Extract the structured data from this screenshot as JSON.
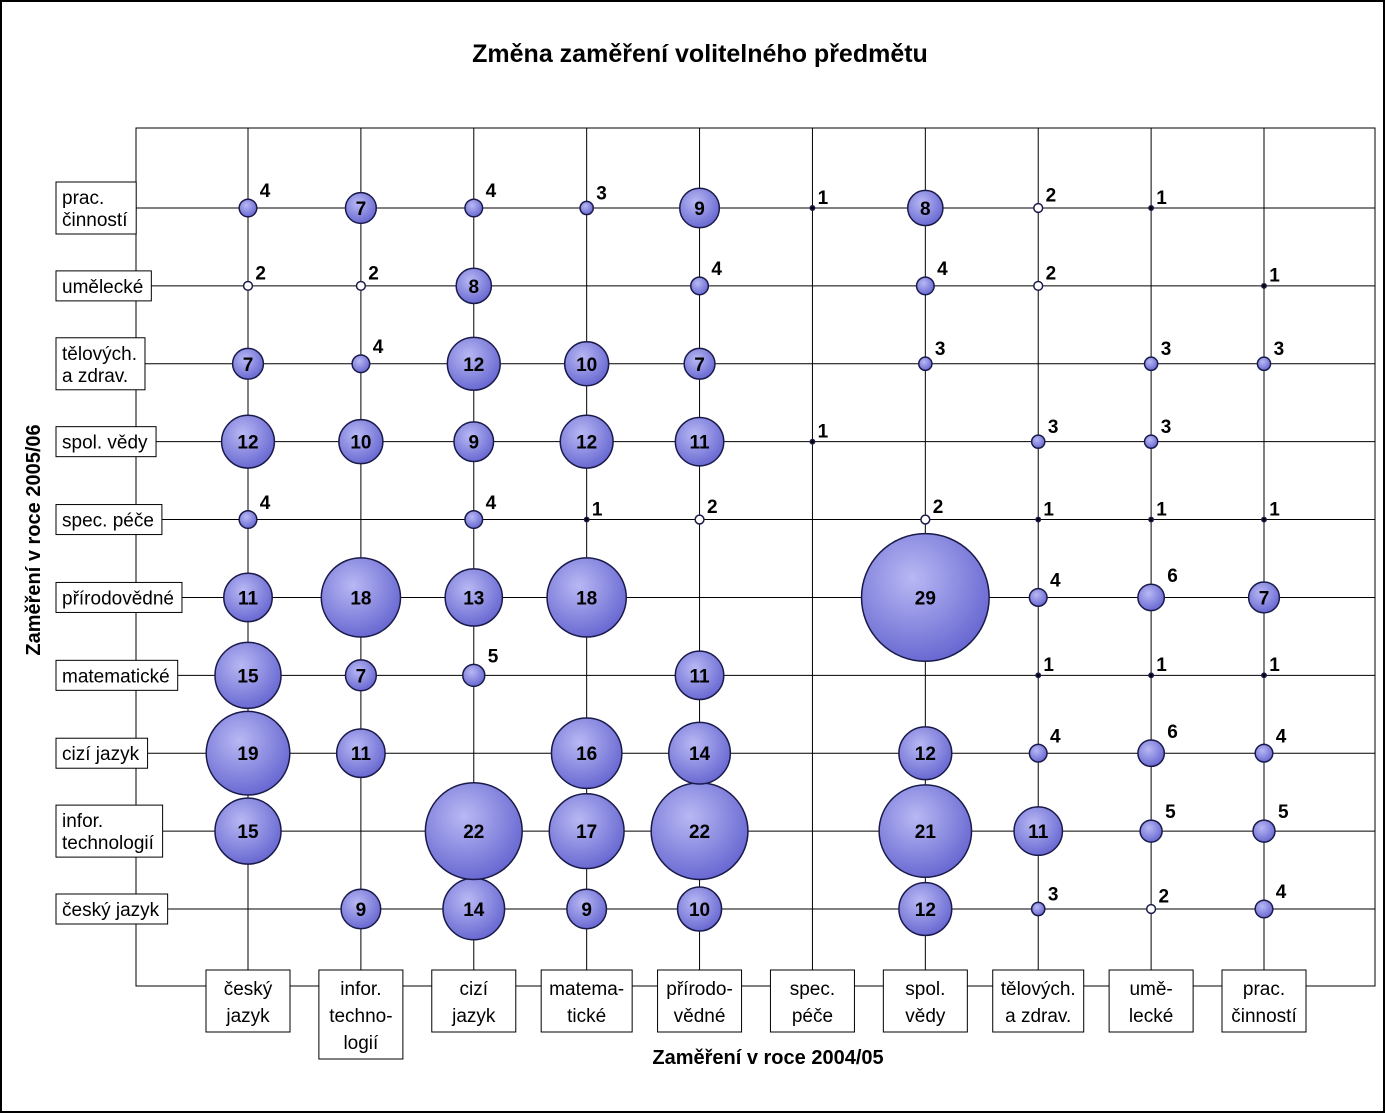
{
  "chart_data": {
    "type": "bubble",
    "title": "Změna zaměření volitelného předmětu",
    "x_label": "Zaměření v roce 2004/05",
    "y_label": "Zaměření v roce 2005/06",
    "color": "#7b7be0",
    "x_categories": [
      [
        "český",
        "jazyk"
      ],
      [
        "infor.",
        "techno-",
        "logií"
      ],
      [
        "cizí",
        "jazyk"
      ],
      [
        "matema-",
        "tické"
      ],
      [
        "přírodo-",
        "vědné"
      ],
      [
        "spec.",
        "péče"
      ],
      [
        "spol.",
        "vědy"
      ],
      [
        "tělových.",
        "a zdrav."
      ],
      [
        "umě-",
        "lecké"
      ],
      [
        "prac.",
        "činností"
      ]
    ],
    "y_categories": [
      [
        "český jazyk"
      ],
      [
        "infor.",
        "technologií"
      ],
      [
        "cizí jazyk"
      ],
      [
        "matematické"
      ],
      [
        "přírodovědné"
      ],
      [
        "spec. péče"
      ],
      [
        "spol. vědy"
      ],
      [
        "tělových.",
        "a zdrav."
      ],
      [
        "umělecké"
      ],
      [
        "prac.",
        "činností"
      ]
    ],
    "values": [
      [
        null,
        9,
        14,
        9,
        10,
        null,
        12,
        3,
        2,
        4
      ],
      [
        15,
        null,
        22,
        17,
        22,
        null,
        21,
        11,
        5,
        5
      ],
      [
        19,
        11,
        null,
        16,
        14,
        null,
        12,
        4,
        6,
        4
      ],
      [
        15,
        7,
        5,
        null,
        11,
        null,
        null,
        1,
        1,
        1
      ],
      [
        11,
        18,
        13,
        18,
        null,
        null,
        29,
        4,
        6,
        7
      ],
      [
        4,
        null,
        4,
        1,
        2,
        null,
        2,
        1,
        1,
        1
      ],
      [
        12,
        10,
        9,
        12,
        11,
        1,
        null,
        3,
        3,
        null
      ],
      [
        7,
        4,
        12,
        10,
        7,
        null,
        3,
        null,
        3,
        3
      ],
      [
        2,
        2,
        8,
        null,
        4,
        null,
        4,
        2,
        null,
        1
      ],
      [
        4,
        7,
        4,
        3,
        9,
        1,
        8,
        2,
        1,
        null
      ]
    ]
  }
}
